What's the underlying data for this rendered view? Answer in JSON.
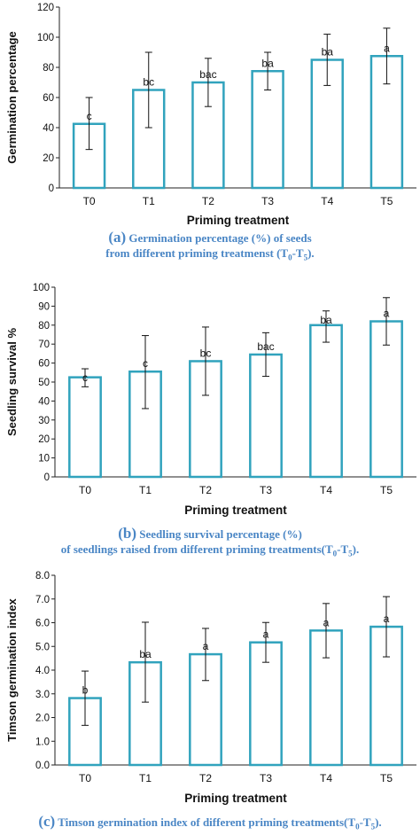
{
  "colors": {
    "bar_stroke": "#31a3bd",
    "caption": "#4a86c5",
    "axis": "#222222"
  },
  "chart_data": [
    {
      "type": "bar",
      "title": "",
      "xlabel": "Priming treatment",
      "ylabel": "Germination percentage",
      "ylim": [
        0,
        120
      ],
      "yticks": [
        "0",
        "20",
        "40",
        "60",
        "80",
        "100",
        "120"
      ],
      "categories": [
        "T0",
        "T1",
        "T2",
        "T3",
        "T4",
        "T5"
      ],
      "values": [
        42.5,
        65,
        70,
        77.5,
        85,
        87.5
      ],
      "error_low": [
        25.5,
        40,
        54,
        65,
        68,
        69
      ],
      "error_high": [
        60,
        90,
        86,
        90,
        102,
        106
      ],
      "letters": [
        "c",
        "bc",
        "bac",
        "ba",
        "ba",
        "a"
      ],
      "grid": false,
      "caption": {
        "letter": "(a)",
        "line1": "Germination percentage (%) of seeds",
        "line2_pre": "from different priming treatmenst (T",
        "sub1": "0",
        "mid": "-T",
        "sub2": "5",
        "post": ")."
      }
    },
    {
      "type": "bar",
      "title": "",
      "xlabel": "Priming treatment",
      "ylabel": "Seedling survival %",
      "ylim": [
        0,
        100
      ],
      "yticks": [
        "0",
        "10",
        "20",
        "30",
        "40",
        "50",
        "60",
        "70",
        "80",
        "90",
        "100"
      ],
      "categories": [
        "T0",
        "T1",
        "T2",
        "T3",
        "T4",
        "T5"
      ],
      "values": [
        52.5,
        55.5,
        61,
        64.5,
        80,
        82
      ],
      "error_low": [
        47.5,
        36,
        43,
        53,
        71,
        69.5
      ],
      "error_high": [
        57,
        74.5,
        79,
        76,
        87.5,
        94.5
      ],
      "letters": [
        "c",
        "c",
        "bc",
        "bac",
        "ba",
        "a"
      ],
      "grid": false,
      "caption": {
        "letter": "(b)",
        "line1": "Seedling survival percentage (%)",
        "line2_pre": "of seedlings raised from different priming treatments(T",
        "sub1": "0",
        "mid": "-T",
        "sub2": "5",
        "post": ")."
      }
    },
    {
      "type": "bar",
      "title": "",
      "xlabel": "Priming treatment",
      "ylabel": "Timson germination index",
      "ylim": [
        0,
        8
      ],
      "yticks": [
        "0.0",
        "1.0",
        "2.0",
        "3.0",
        "4.0",
        "5.0",
        "6.0",
        "7.0",
        "8.0"
      ],
      "categories": [
        "T0",
        "T1",
        "T2",
        "T3",
        "T4",
        "T5"
      ],
      "values": [
        2.82,
        4.33,
        4.67,
        5.17,
        5.67,
        5.83
      ],
      "error_low": [
        1.67,
        2.65,
        3.56,
        4.33,
        4.52,
        4.56
      ],
      "error_high": [
        3.96,
        6.02,
        5.76,
        6.01,
        6.81,
        7.1
      ],
      "letters": [
        "b",
        "ba",
        "a",
        "a",
        "a",
        "a"
      ],
      "grid": false,
      "caption": {
        "letter": "(c)",
        "line1": "Timson  germination index of different priming treatments(T",
        "sub1": "0",
        "mid": "-T",
        "sub2": "5",
        "post": ")."
      }
    }
  ]
}
